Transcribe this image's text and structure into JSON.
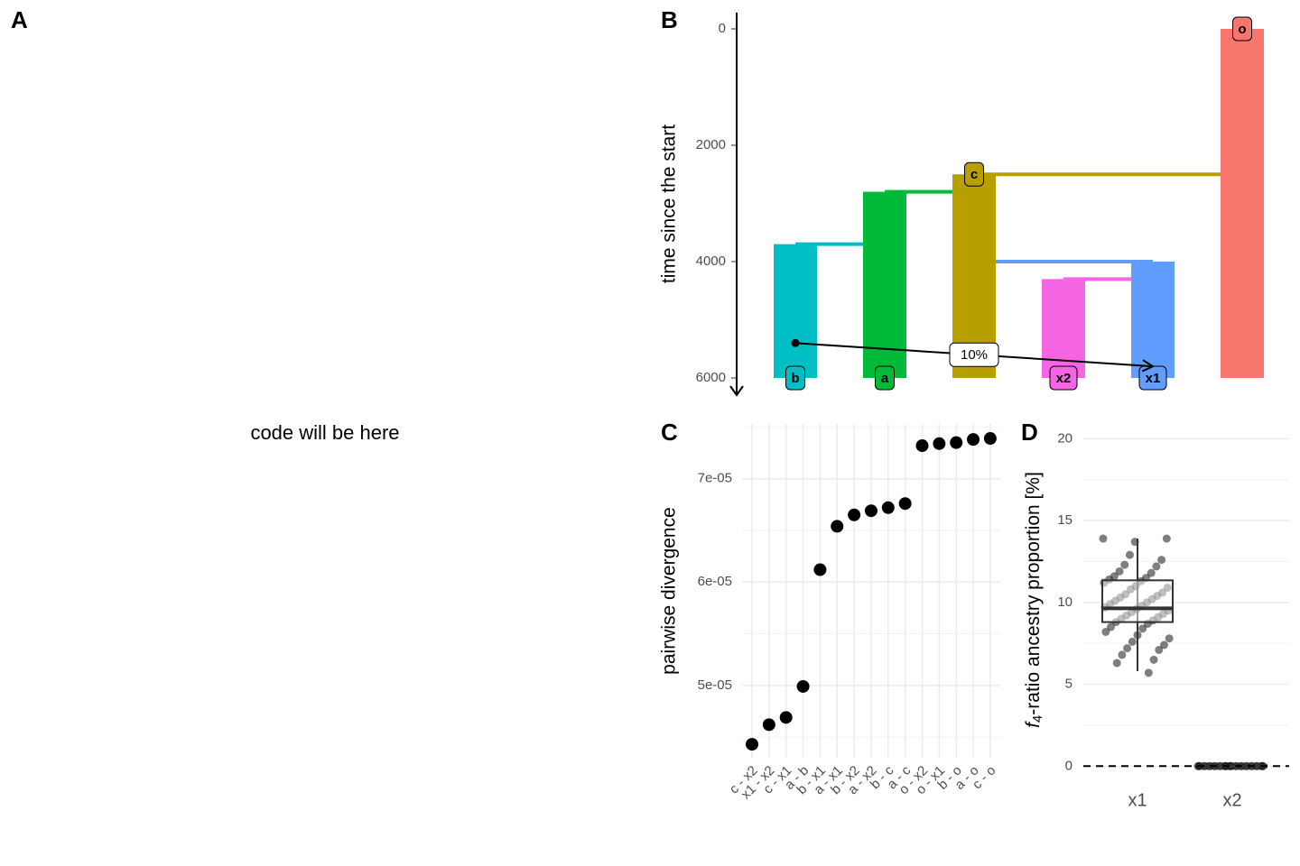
{
  "panel_a": {
    "label": "A",
    "text": "code will be here"
  },
  "chart_data": [
    {
      "type": "tree",
      "panel_label": "B",
      "ylabel": "time since the start",
      "y_reversed": true,
      "ylim": [
        0,
        6000
      ],
      "yticks": [
        0,
        2000,
        4000,
        6000
      ],
      "populations": [
        {
          "name": "b",
          "color": "#00BFC4",
          "parent": "a",
          "start": 3700,
          "end": 6000
        },
        {
          "name": "a",
          "color": "#00BA38",
          "parent": "c",
          "start": 2800,
          "end": 6000
        },
        {
          "name": "c",
          "color": "#B79F00",
          "parent": "o",
          "start": 2500,
          "end": 6000
        },
        {
          "name": "x2",
          "color": "#F564E3",
          "parent": "x1",
          "start": 4300,
          "end": 6000
        },
        {
          "name": "x1",
          "color": "#619CFF",
          "parent": "c",
          "start": 4000,
          "end": 6000
        },
        {
          "name": "o",
          "color": "#F8766D",
          "parent": null,
          "start": 0,
          "end": 6000
        }
      ],
      "gene_flow": {
        "from": "b",
        "to": "x1",
        "start": 5400,
        "end": 5800,
        "rate": {
          "value": 10,
          "label": "10%"
        }
      }
    },
    {
      "type": "scatter",
      "panel_label": "C",
      "ylabel": "pairwise divergence",
      "color": "#000000",
      "grid": true,
      "categories": [
        "c - x2",
        "x1 - x2",
        "c - x1",
        "a - b",
        "b - x1",
        "a - x1",
        "b - x2",
        "a - x2",
        "b - c",
        "a - c",
        "o - x2",
        "o - x1",
        "b - o",
        "a - o",
        "c - o"
      ],
      "values": [
        4.43e-05,
        4.62e-05,
        4.69e-05,
        4.99e-05,
        6.12e-05,
        6.54e-05,
        6.65e-05,
        6.69e-05,
        6.72e-05,
        6.76e-05,
        7.32e-05,
        7.34e-05,
        7.35e-05,
        7.38e-05,
        7.39e-05
      ],
      "ylim": [
        4.3e-05,
        7.53e-05
      ],
      "yticks": [
        {
          "value": 5e-05,
          "label": "5e-05"
        },
        {
          "value": 6e-05,
          "label": "6e-05"
        },
        {
          "value": 7e-05,
          "label": "7e-05"
        }
      ],
      "yminorticks": [
        4.5e-05,
        5.5e-05,
        6.5e-05,
        7.5e-05
      ]
    },
    {
      "type": "box",
      "panel_label": "D",
      "grid": true,
      "ylabel": {
        "italic": "f",
        "sub": "4",
        "rest": "-ratio ancestry proportion [%]"
      },
      "categories": [
        "x1",
        "x2"
      ],
      "boxes": [
        {
          "whisker_low": 5.8,
          "q1": 8.8,
          "median": 9.64,
          "q3": 11.35,
          "whisker_high": 13.9
        },
        {
          "whisker_low": 0,
          "q1": 0,
          "median": 0,
          "q3": 0,
          "whisker_high": 0
        }
      ],
      "points": [
        [
          13.9,
          13.7,
          13.9,
          12.9,
          12.6,
          12.3,
          12.2,
          11.9,
          11.8,
          11.6,
          11.5,
          11.4,
          11.3,
          11.2,
          11.0,
          10.9,
          10.8,
          10.6,
          10.5,
          10.4,
          10.3,
          10.2,
          10.1,
          10.0,
          9.9,
          9.8,
          9.7,
          9.6,
          9.5,
          9.4,
          9.3,
          9.2,
          9.1,
          9.0,
          8.9,
          8.8,
          8.7,
          8.5,
          8.4,
          8.2,
          8.0,
          7.8,
          7.6,
          7.4,
          7.2,
          7.1,
          6.8,
          6.5,
          6.3,
          5.7
        ],
        [
          0,
          0,
          0,
          0,
          0,
          0,
          0,
          0,
          0,
          0,
          0,
          0,
          0,
          0,
          0,
          0,
          0,
          0,
          0,
          0,
          0,
          0,
          0,
          0,
          0,
          0,
          0,
          0,
          0,
          0
        ]
      ],
      "ylim": [
        -0.7,
        20.9
      ],
      "yticks": [
        0,
        5,
        10,
        15,
        20
      ],
      "yminorticks": [
        2.5,
        7.5,
        12.5,
        17.5
      ],
      "reference_line": 0
    }
  ]
}
